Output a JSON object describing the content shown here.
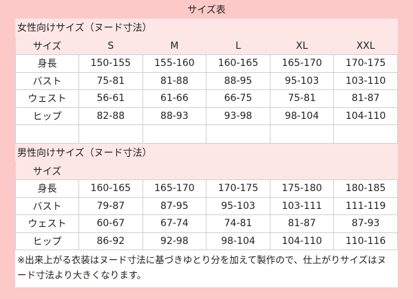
{
  "title": "サイズ表",
  "women": {
    "heading": "女性向けサイズ（ヌード寸法）",
    "size_label": "サイズ",
    "sizes": [
      "S",
      "M",
      "L",
      "XL",
      "XXL"
    ],
    "rows": [
      {
        "label": "身長",
        "values": [
          "150-155",
          "155-160",
          "160-165",
          "165-170",
          "170-175"
        ]
      },
      {
        "label": "バスト",
        "values": [
          "75-81",
          "81-88",
          "88-95",
          "95-103",
          "103-110"
        ]
      },
      {
        "label": "ウェスト",
        "values": [
          "56-61",
          "61-66",
          "66-75",
          "75-81",
          "81-87"
        ]
      },
      {
        "label": "ヒップ",
        "values": [
          "82-88",
          "88-93",
          "93-98",
          "98-104",
          "104-110"
        ]
      }
    ]
  },
  "men": {
    "heading": "男性向けサイズ（ヌード寸法）",
    "size_label": "サイズ",
    "rows": [
      {
        "label": "身長",
        "values": [
          "160-165",
          "165-170",
          "170-175",
          "175-180",
          "180-185"
        ]
      },
      {
        "label": "バスト",
        "values": [
          "79-87",
          "87-95",
          "95-103",
          "103-111",
          "111-119"
        ]
      },
      {
        "label": "ウェスト",
        "values": [
          "60-67",
          "67-74",
          "74-81",
          "81-87",
          "87-93"
        ]
      },
      {
        "label": "ヒップ",
        "values": [
          "86-92",
          "92-98",
          "98-104",
          "104-110",
          "110-116"
        ]
      }
    ]
  },
  "note": "※出来上がる衣装はヌード寸法に基づきゆとり分を加えて製作ので、仕上がりサイズはヌード寸法より大きくなります。",
  "colors": {
    "frame": "#fcc8c8",
    "header_band": "#fde6e6",
    "grid": "#cfcfcf"
  }
}
